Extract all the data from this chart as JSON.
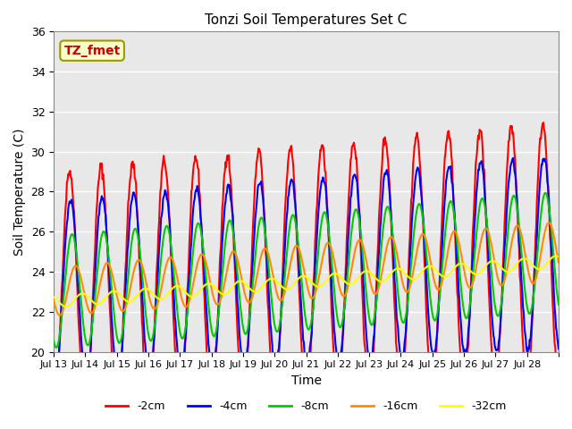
{
  "title": "Tonzi Soil Temperatures Set C",
  "xlabel": "Time",
  "ylabel": "Soil Temperature (C)",
  "ylim": [
    20,
    36
  ],
  "yticks": [
    20,
    22,
    24,
    26,
    28,
    30,
    32,
    34,
    36
  ],
  "xtick_labels": [
    "Jul 13",
    "Jul 14",
    "Jul 15",
    "Jul 16",
    "Jul 17",
    "Jul 18",
    "Jul 19",
    "Jul 20",
    "Jul 21",
    "Jul 22",
    "Jul 23",
    "Jul 24",
    "Jul 25",
    "Jul 26",
    "Jul 27",
    "Jul 28"
  ],
  "annotation_text": "TZ_fmet",
  "annotation_color": "#cc0000",
  "annotation_bg": "#ffffcc",
  "annotation_border": "#999900",
  "series": [
    {
      "label": "-2cm",
      "color": "#ff0000",
      "lw": 1.5
    },
    {
      "label": "-4cm",
      "color": "#0000ff",
      "lw": 1.5
    },
    {
      "label": "-8cm",
      "color": "#00cc00",
      "lw": 1.5
    },
    {
      "label": "-16cm",
      "color": "#ff8c00",
      "lw": 1.5
    },
    {
      "label": "-32cm",
      "color": "#ffff00",
      "lw": 1.5
    }
  ],
  "plot_bg_color": "#e8e8e8",
  "grid_color": "#ffffff"
}
